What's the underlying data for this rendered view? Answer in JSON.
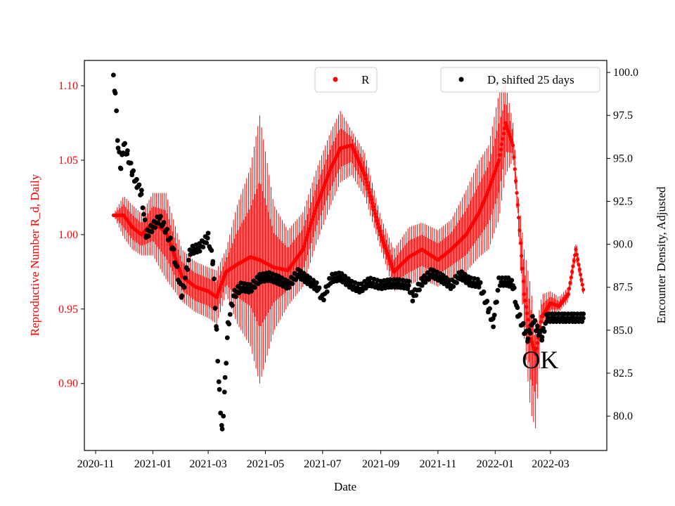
{
  "chart_data": {
    "type": "scatter",
    "title": "",
    "xlabel": "Date",
    "ylabel_left": "Reproductive Number R_d, Daily",
    "ylabel_right": "Encounter Density, Adjusted",
    "xlim": [
      "2020-10-20",
      "2022-04-30"
    ],
    "ylim_left": [
      0.855,
      1.117
    ],
    "ylim_right": [
      78.0,
      100.7
    ],
    "x_ticks": [
      "2020-11",
      "2021-01",
      "2021-03",
      "2021-05",
      "2021-07",
      "2021-09",
      "2021-11",
      "2022-01",
      "2022-03"
    ],
    "y_ticks_left": [
      "0.90",
      "0.95",
      "1.00",
      "1.05",
      "1.10"
    ],
    "y_ticks_right": [
      "80.0",
      "82.5",
      "85.0",
      "87.5",
      "90.0",
      "92.5",
      "95.0",
      "97.5",
      "100.0"
    ],
    "colors": {
      "R": "#ff0000",
      "D": "#000000",
      "left_axis": "#ff0000"
    },
    "legend": [
      {
        "label": "R",
        "position": "upper-center",
        "color": "#ff0000"
      },
      {
        "label": "D, shifted 25 days",
        "position": "upper-right",
        "color": "#000000"
      }
    ],
    "annotation": "OK",
    "annotation_position": [
      "2022-02-15",
      0.916
    ],
    "series": [
      {
        "name": "R",
        "axis": "left",
        "marker": "dot with vertical error bars",
        "points": [
          [
            "2020-11-20",
            1.013,
            1.013,
            1.014
          ],
          [
            "2020-12-01",
            1.013,
            0.998,
            1.026
          ],
          [
            "2020-12-10",
            1.005,
            0.99,
            1.02
          ],
          [
            "2020-12-20",
            1.0,
            0.986,
            1.014
          ],
          [
            "2021-01-01",
            1.008,
            0.986,
            1.028
          ],
          [
            "2021-01-15",
            1.002,
            0.97,
            1.028
          ],
          [
            "2021-02-01",
            0.972,
            0.955,
            0.99
          ],
          [
            "2021-02-15",
            0.965,
            0.948,
            0.982
          ],
          [
            "2021-03-01",
            0.962,
            0.944,
            0.978
          ],
          [
            "2021-03-10",
            0.958,
            0.94,
            0.976
          ],
          [
            "2021-03-20",
            0.975,
            0.96,
            0.99
          ],
          [
            "2021-04-01",
            0.98,
            0.94,
            1.02
          ],
          [
            "2021-04-15",
            0.985,
            0.925,
            1.045
          ],
          [
            "2021-04-25",
            0.983,
            0.9,
            1.08
          ],
          [
            "2021-05-10",
            0.978,
            0.935,
            1.02
          ],
          [
            "2021-05-25",
            0.976,
            0.952,
            1.003
          ],
          [
            "2021-06-10",
            0.99,
            0.965,
            1.015
          ],
          [
            "2021-06-25",
            1.02,
            0.995,
            1.045
          ],
          [
            "2021-07-10",
            1.045,
            1.02,
            1.07
          ],
          [
            "2021-07-20",
            1.058,
            1.035,
            1.083
          ],
          [
            "2021-08-01",
            1.06,
            1.04,
            1.07
          ],
          [
            "2021-08-15",
            1.04,
            1.025,
            1.055
          ],
          [
            "2021-09-01",
            1.0,
            0.99,
            1.012
          ],
          [
            "2021-09-15",
            0.975,
            0.962,
            0.99
          ],
          [
            "2021-10-01",
            0.985,
            0.966,
            1.005
          ],
          [
            "2021-10-15",
            0.99,
            0.97,
            1.008
          ],
          [
            "2021-11-01",
            0.983,
            0.965,
            1.003
          ],
          [
            "2021-11-15",
            0.99,
            0.97,
            1.01
          ],
          [
            "2021-12-01",
            1.0,
            0.975,
            1.03
          ],
          [
            "2021-12-15",
            1.015,
            0.985,
            1.05
          ],
          [
            "2021-12-25",
            1.03,
            0.99,
            1.06
          ],
          [
            "2022-01-05",
            1.05,
            1.01,
            1.095
          ],
          [
            "2022-01-12",
            1.075,
            1.04,
            1.102
          ],
          [
            "2022-01-20",
            1.06,
            1.05,
            1.075
          ],
          [
            "2022-01-25",
            1.02,
            1.01,
            1.03
          ],
          [
            "2022-02-01",
            0.96,
            0.93,
            0.99
          ],
          [
            "2022-02-08",
            0.93,
            0.88,
            0.965
          ],
          [
            "2022-02-13",
            0.92,
            0.87,
            0.935
          ],
          [
            "2022-02-20",
            0.945,
            0.94,
            0.96
          ],
          [
            "2022-03-01",
            0.954,
            0.946,
            0.962
          ],
          [
            "2022-03-10",
            0.952,
            0.948,
            0.958
          ],
          [
            "2022-03-20",
            0.96,
            0.955,
            0.965
          ],
          [
            "2022-03-28",
            0.99,
            0.984,
            0.996
          ],
          [
            "2022-04-05",
            0.963,
            0.958,
            0.967
          ]
        ]
      },
      {
        "name": "D, shifted 25 days",
        "axis": "right",
        "marker": "dot",
        "points": [
          [
            "2020-11-20",
            99.6
          ],
          [
            "2020-11-22",
            98.8
          ],
          [
            "2020-11-25",
            95.6
          ],
          [
            "2020-11-28",
            94.4
          ],
          [
            "2020-12-01",
            95.8
          ],
          [
            "2020-12-05",
            95.2
          ],
          [
            "2020-12-10",
            94.2
          ],
          [
            "2020-12-15",
            93.5
          ],
          [
            "2020-12-20",
            92.9
          ],
          [
            "2020-12-25",
            90.5
          ],
          [
            "2021-01-01",
            91.0
          ],
          [
            "2021-01-08",
            91.5
          ],
          [
            "2021-01-15",
            90.8
          ],
          [
            "2021-01-22",
            89.8
          ],
          [
            "2021-02-01",
            87.0
          ],
          [
            "2021-02-10",
            89.6
          ],
          [
            "2021-02-20",
            89.8
          ],
          [
            "2021-03-01",
            90.4
          ],
          [
            "2021-03-06",
            89.0
          ],
          [
            "2021-03-10",
            84.8
          ],
          [
            "2021-03-13",
            81.3
          ],
          [
            "2021-03-16",
            79.0
          ],
          [
            "2021-03-19",
            82.0
          ],
          [
            "2021-03-22",
            85.2
          ],
          [
            "2021-03-28",
            87.0
          ],
          [
            "2021-04-05",
            87.5
          ],
          [
            "2021-04-15",
            87.4
          ],
          [
            "2021-04-25",
            88.0
          ],
          [
            "2021-05-05",
            88.1
          ],
          [
            "2021-05-15",
            87.9
          ],
          [
            "2021-05-25",
            87.6
          ],
          [
            "2021-06-05",
            88.3
          ],
          [
            "2021-06-15",
            87.9
          ],
          [
            "2021-06-25",
            87.5
          ],
          [
            "2021-07-01",
            86.8
          ],
          [
            "2021-07-10",
            88.0
          ],
          [
            "2021-07-20",
            88.1
          ],
          [
            "2021-08-01",
            87.6
          ],
          [
            "2021-08-10",
            87.4
          ],
          [
            "2021-08-20",
            87.8
          ],
          [
            "2021-09-01",
            87.6
          ],
          [
            "2021-09-10",
            87.7
          ],
          [
            "2021-09-20",
            87.7
          ],
          [
            "2021-10-01",
            87.6
          ],
          [
            "2021-10-05",
            86.9
          ],
          [
            "2021-10-15",
            87.8
          ],
          [
            "2021-10-25",
            88.3
          ],
          [
            "2021-11-05",
            88.0
          ],
          [
            "2021-11-15",
            87.6
          ],
          [
            "2021-11-25",
            88.2
          ],
          [
            "2021-12-05",
            87.8
          ],
          [
            "2021-12-15",
            87.7
          ],
          [
            "2021-12-25",
            86.2
          ],
          [
            "2021-12-30",
            85.4
          ],
          [
            "2022-01-05",
            87.8
          ],
          [
            "2022-01-15",
            87.8
          ],
          [
            "2022-01-20",
            87.6
          ],
          [
            "2022-01-25",
            86.0
          ],
          [
            "2022-02-01",
            85.0
          ],
          [
            "2022-02-05",
            84.5
          ],
          [
            "2022-02-10",
            85.6
          ],
          [
            "2022-02-15",
            85.0
          ],
          [
            "2022-02-20",
            84.6
          ],
          [
            "2022-02-25",
            85.7
          ],
          [
            "2022-03-05",
            85.7
          ],
          [
            "2022-03-15",
            85.7
          ],
          [
            "2022-03-25",
            85.7
          ],
          [
            "2022-04-05",
            85.7
          ]
        ]
      }
    ]
  }
}
